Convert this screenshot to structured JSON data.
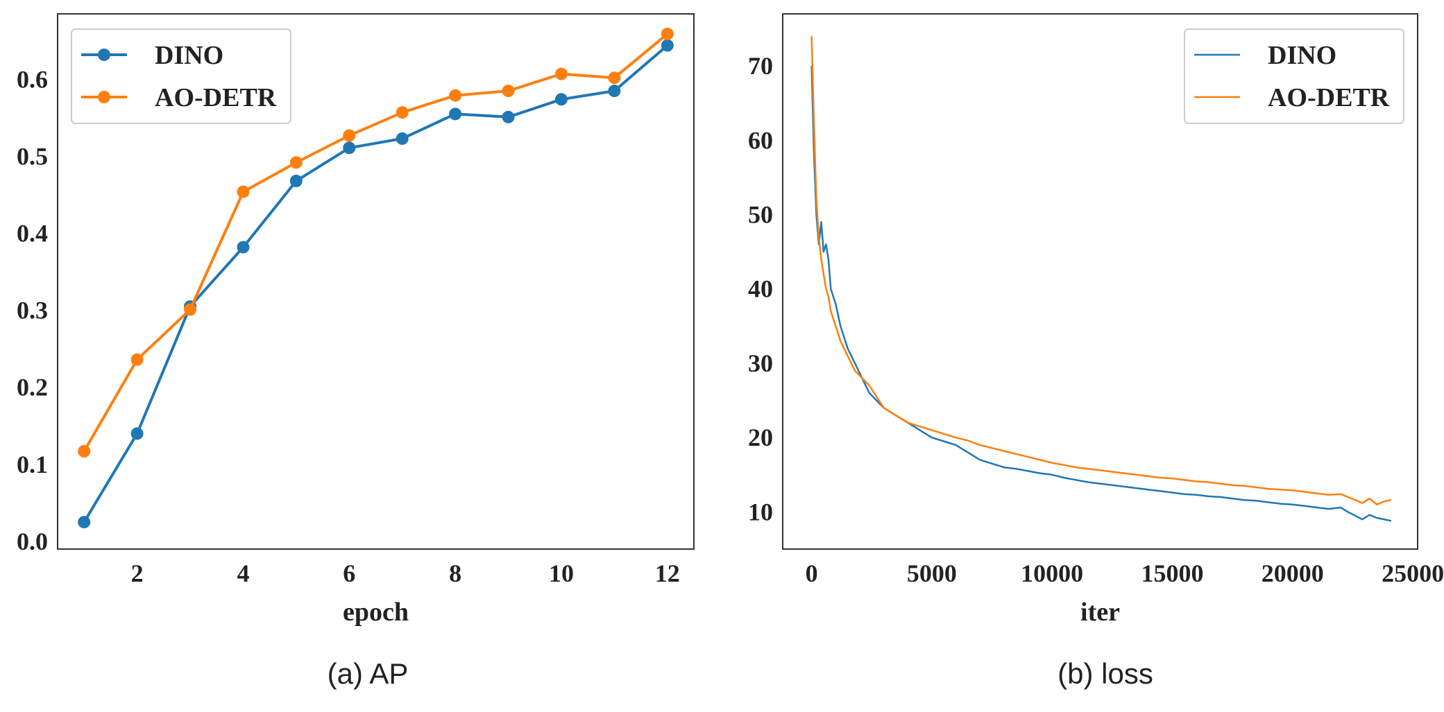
{
  "captions": {
    "a": "(a) AP",
    "b": "(b) loss"
  },
  "colors": {
    "dino": "#1f77b4",
    "aodetr": "#ff7f0e"
  },
  "chart_data": [
    {
      "type": "line",
      "xlabel": "epoch",
      "ylabel": "",
      "xlim": [
        0.5,
        12.5
      ],
      "ylim": [
        -0.01,
        0.685
      ],
      "xticks": [
        2,
        4,
        6,
        8,
        10,
        12
      ],
      "yticks": [
        0.0,
        0.1,
        0.2,
        0.3,
        0.4,
        0.5,
        0.6
      ],
      "ytick_labels": [
        "0.0",
        "0.1",
        "0.2",
        "0.3",
        "0.4",
        "0.5",
        "0.6"
      ],
      "grid": false,
      "legend": "top-left",
      "markers": true,
      "x": [
        1,
        2,
        3,
        4,
        5,
        6,
        7,
        8,
        9,
        10,
        11,
        12
      ],
      "series": [
        {
          "name": "DINO",
          "values": [
            0.025,
            0.14,
            0.305,
            0.382,
            0.468,
            0.511,
            0.523,
            0.555,
            0.551,
            0.574,
            0.585,
            0.644
          ]
        },
        {
          "name": "AO-DETR",
          "values": [
            0.117,
            0.236,
            0.301,
            0.454,
            0.492,
            0.527,
            0.557,
            0.579,
            0.585,
            0.607,
            0.602,
            0.659
          ]
        }
      ]
    },
    {
      "type": "line",
      "xlabel": "iter",
      "ylabel": "",
      "xlim": [
        -1200,
        25200
      ],
      "ylim": [
        5,
        77
      ],
      "xticks": [
        0,
        5000,
        10000,
        15000,
        20000,
        25000
      ],
      "yticks": [
        10,
        20,
        30,
        40,
        50,
        60,
        70
      ],
      "grid": false,
      "legend": "top-right",
      "markers": false,
      "series": [
        {
          "name": "DINO",
          "x": [
            0,
            100,
            200,
            300,
            400,
            500,
            600,
            700,
            800,
            1000,
            1200,
            1500,
            1800,
            2100,
            2400,
            2700,
            3000,
            3500,
            4000,
            4500,
            5000,
            5500,
            6000,
            6500,
            7000,
            7500,
            8000,
            8500,
            9000,
            9500,
            10000,
            10500,
            11000,
            11500,
            12000,
            12500,
            13000,
            13500,
            14000,
            14500,
            15000,
            15500,
            16000,
            16500,
            17000,
            17500,
            18000,
            18500,
            19000,
            19500,
            20000,
            20500,
            21000,
            21500,
            22000,
            22300,
            22600,
            22900,
            23200,
            23500,
            23800,
            24100
          ],
          "values": [
            70,
            58,
            50,
            46,
            49,
            45,
            46,
            44,
            40,
            38,
            35,
            32,
            30,
            28,
            26,
            25,
            24,
            23,
            22,
            21,
            20,
            19.5,
            19,
            18,
            17,
            16.5,
            16,
            15.8,
            15.5,
            15.2,
            15,
            14.6,
            14.3,
            14,
            13.8,
            13.6,
            13.4,
            13.2,
            13,
            12.8,
            12.6,
            12.4,
            12.3,
            12.1,
            12,
            11.8,
            11.6,
            11.5,
            11.3,
            11.1,
            11,
            10.8,
            10.6,
            10.4,
            10.6,
            10,
            9.5,
            9,
            9.6,
            9.2,
            9,
            8.8
          ]
        },
        {
          "name": "AO-DETR",
          "x": [
            0,
            100,
            200,
            300,
            400,
            500,
            600,
            700,
            800,
            1000,
            1200,
            1500,
            1800,
            2100,
            2400,
            2700,
            3000,
            3500,
            4000,
            4500,
            5000,
            5500,
            6000,
            6500,
            7000,
            7500,
            8000,
            8500,
            9000,
            9500,
            10000,
            10500,
            11000,
            11500,
            12000,
            12500,
            13000,
            13500,
            14000,
            14500,
            15000,
            15500,
            16000,
            16500,
            17000,
            17500,
            18000,
            18500,
            19000,
            19500,
            20000,
            20500,
            21000,
            21500,
            22000,
            22300,
            22600,
            22900,
            23200,
            23500,
            23800,
            24100
          ],
          "values": [
            74,
            62,
            52,
            47,
            44,
            42,
            40,
            39,
            37,
            35,
            33,
            31,
            29,
            28,
            27,
            25.5,
            24,
            23,
            22,
            21.5,
            21,
            20.5,
            20,
            19.6,
            19,
            18.6,
            18.2,
            17.8,
            17.4,
            17,
            16.6,
            16.3,
            16,
            15.8,
            15.6,
            15.4,
            15.2,
            15,
            14.8,
            14.6,
            14.5,
            14.3,
            14.1,
            14,
            13.8,
            13.6,
            13.5,
            13.3,
            13.1,
            13,
            12.9,
            12.7,
            12.5,
            12.3,
            12.4,
            12,
            11.6,
            11.2,
            11.8,
            11,
            11.4,
            11.6
          ]
        }
      ]
    }
  ]
}
